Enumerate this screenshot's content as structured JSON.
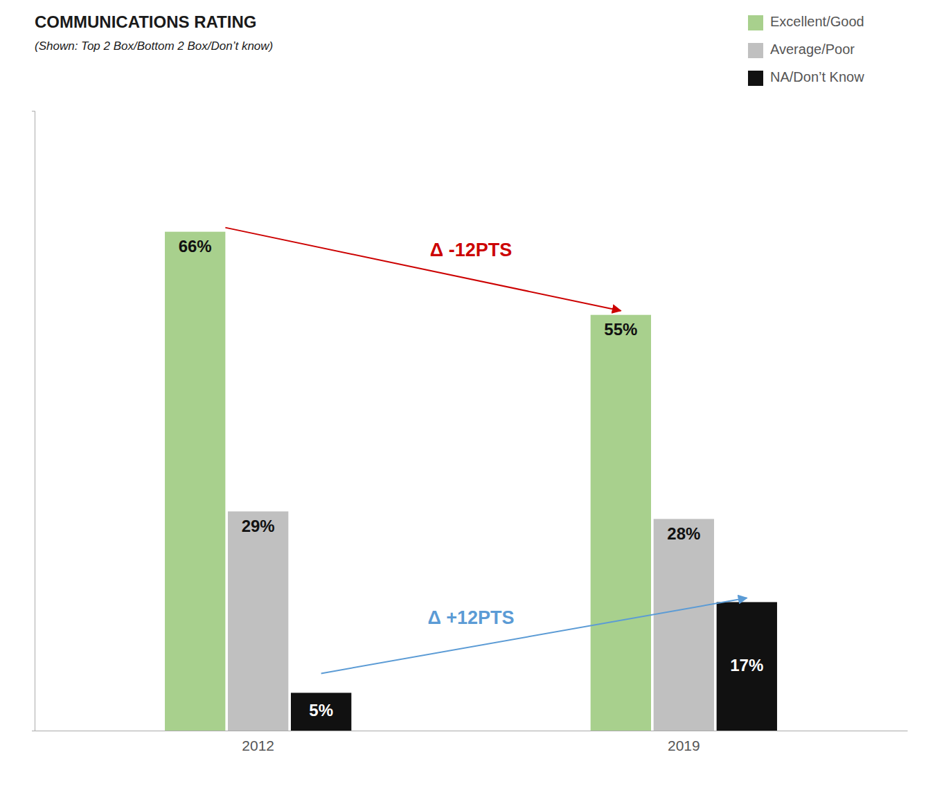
{
  "chart_data": {
    "type": "bar",
    "title": "COMMUNICATIONS RATING",
    "subtitle": "(Shown: Top 2 Box/Bottom 2 Box/Don’t know)",
    "categories": [
      "2012",
      "2019"
    ],
    "series": [
      {
        "name": "Excellent/Good",
        "color": "#a8d08d",
        "values": [
          66,
          55
        ],
        "value_labels": [
          "66%",
          "55%"
        ]
      },
      {
        "name": "Average/Poor",
        "color": "#c0c0c0",
        "values": [
          29,
          28
        ],
        "value_labels": [
          "29%",
          "28%"
        ]
      },
      {
        "name": "NA/Don’t Know",
        "color": "#111111",
        "values": [
          5,
          17
        ],
        "value_labels": [
          "5%",
          "17%"
        ]
      }
    ],
    "ylim": [
      0,
      82
    ],
    "tick_labels": "x",
    "legend": "upper right",
    "annotations": [
      {
        "text": "Δ -12PTS",
        "color": "#cc0000"
      },
      {
        "text": "Δ +12PTS",
        "color": "#5b9bd5"
      }
    ]
  }
}
